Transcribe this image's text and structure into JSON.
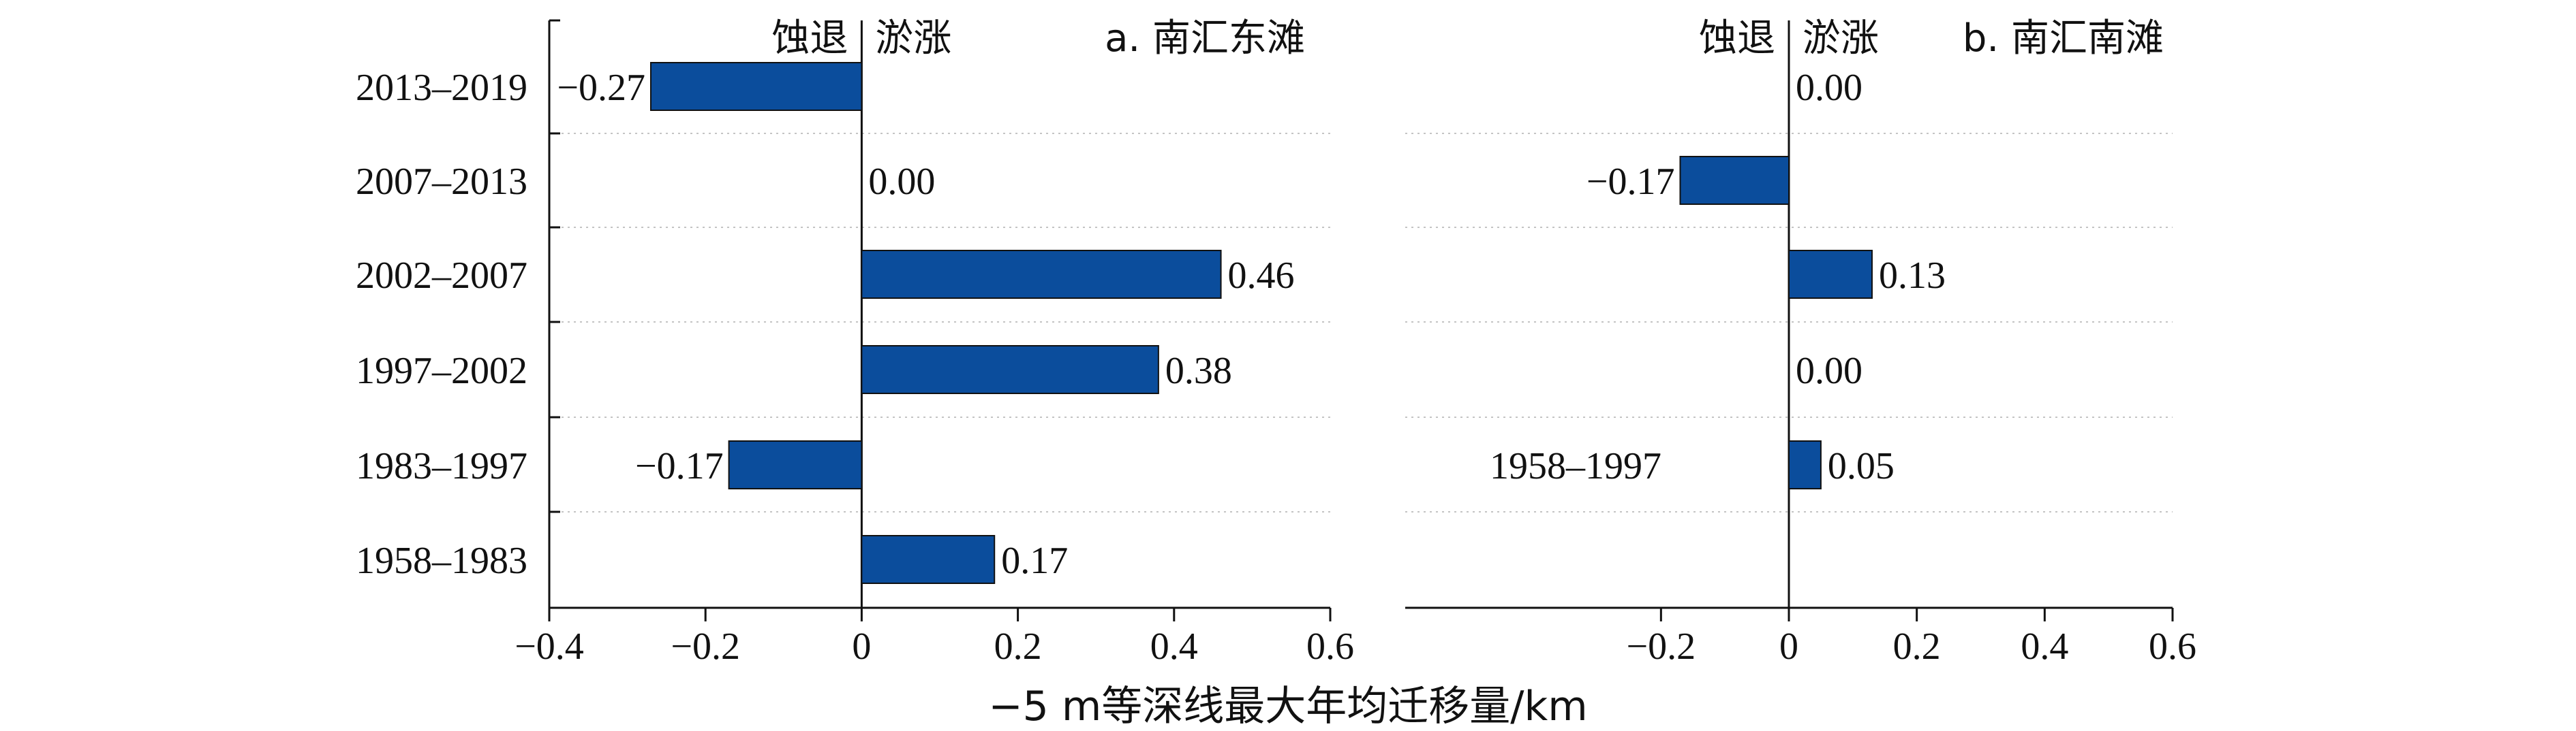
{
  "chart_data": [
    {
      "type": "bar",
      "orientation": "horizontal",
      "title": "a. 南汇东滩",
      "side_labels": {
        "negative": "蚀退",
        "positive": "淤涨"
      },
      "categories": [
        "2013–2019",
        "2007–2013",
        "2002–2007",
        "1997–2002",
        "1983–1997",
        "1958–1983"
      ],
      "values": [
        -0.27,
        0.0,
        0.46,
        0.38,
        -0.17,
        0.17
      ],
      "value_labels": [
        "−0.27",
        "0.00",
        "0.46",
        "0.38",
        "−0.17",
        "0.17"
      ],
      "xlim": [
        -0.4,
        0.6
      ],
      "xticks": [
        -0.4,
        -0.2,
        0,
        0.2,
        0.4,
        0.6
      ],
      "xtick_labels": [
        "−0.4",
        "−0.2",
        "0",
        "0.2",
        "0.4",
        "0.6"
      ],
      "bar_color": "#0b4d9c",
      "grid": "dotted horizontal row separators"
    },
    {
      "type": "bar",
      "orientation": "horizontal",
      "title": "b. 南汇南滩",
      "side_labels": {
        "negative": "蚀退",
        "positive": "淤涨"
      },
      "rows": 6,
      "bars": [
        {
          "row": 0,
          "value": 0.0,
          "label": "0.00"
        },
        {
          "row": 1,
          "value": -0.17,
          "label": "−0.17"
        },
        {
          "row": 2,
          "value": 0.13,
          "label": "0.13"
        },
        {
          "row": 3,
          "value": 0.0,
          "label": "0.00"
        },
        {
          "row": 4,
          "value": 0.05,
          "label": "0.05",
          "category": "1958–1997"
        }
      ],
      "xlim": [
        -0.6,
        0.6
      ],
      "xticks": [
        -0.2,
        0,
        0.2,
        0.4,
        0.6
      ],
      "xtick_labels": [
        "−0.2",
        "0",
        "0.2",
        "0.4",
        "0.6"
      ],
      "bar_color": "#0b4d9c",
      "grid": "dotted horizontal row separators"
    }
  ],
  "xlabel": "−5 m等深线最大年均迁移量/km"
}
